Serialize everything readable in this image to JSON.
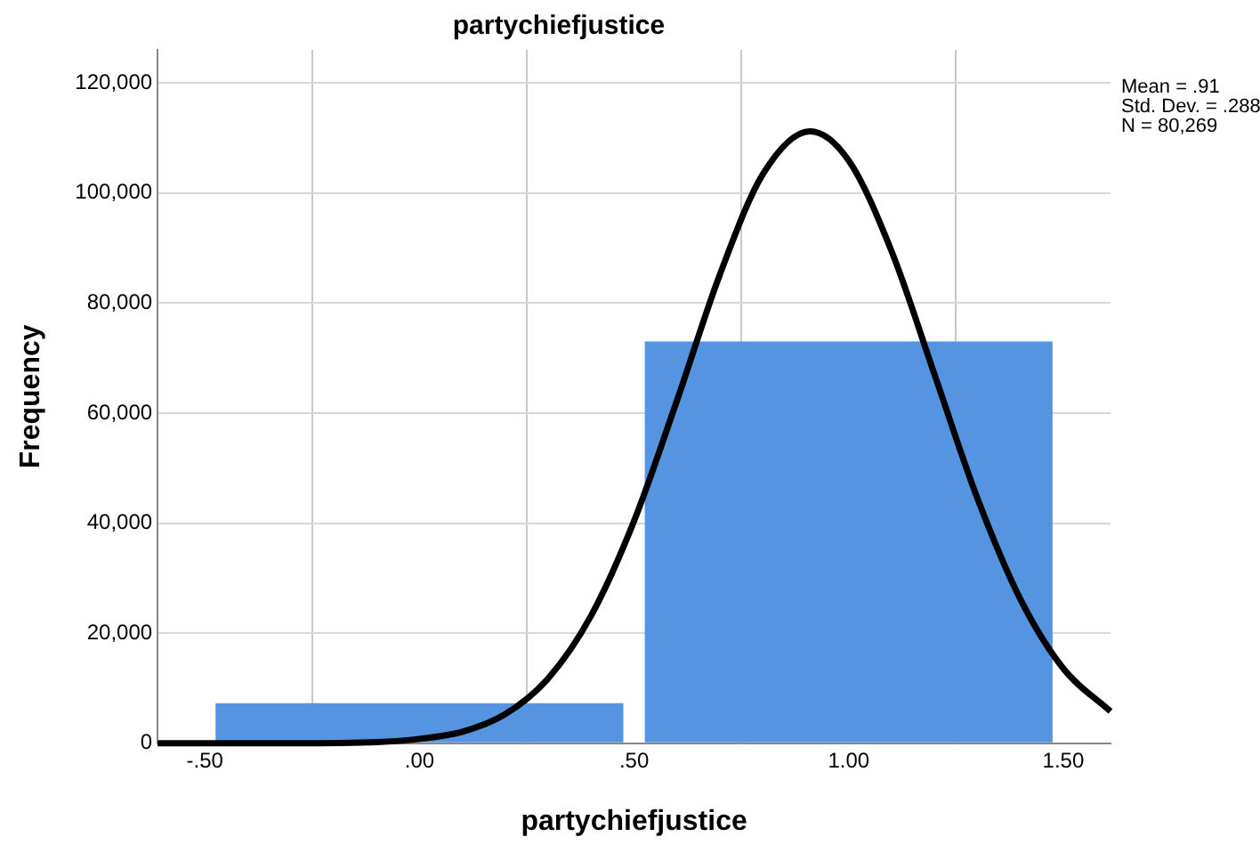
{
  "chart_data": {
    "type": "histogram",
    "title": "partychiefjustice",
    "xlabel": "partychiefjustice",
    "ylabel": "Frequency",
    "bins": [
      -0.5,
      0.5,
      1.5
    ],
    "values": [
      7300,
      73000
    ],
    "color": "#5594e1",
    "series": [
      {
        "type": "line",
        "color": "#000000",
        "marker": "none",
        "line_style": "solid",
        "x": [
          -0.61,
          -0.3,
          -0.1,
          0.0,
          0.1,
          0.2,
          0.3,
          0.4,
          0.5,
          0.6,
          0.7,
          0.8,
          0.91,
          1.0,
          1.1,
          1.2,
          1.3,
          1.4,
          1.5,
          1.61
        ],
        "values": [
          0,
          0,
          200,
          800,
          2100,
          5300,
          11800,
          23200,
          40400,
          62300,
          85200,
          103400,
          111200,
          105900,
          89400,
          67000,
          44500,
          26200,
          13600,
          5800
        ]
      }
    ],
    "xlim": [
      -0.61,
      1.61
    ],
    "xticks": [
      {
        "value": -0.5,
        "label": "-.50"
      },
      {
        "value": 0,
        "label": ".00"
      },
      {
        "value": 0.5,
        "label": ".50"
      },
      {
        "value": 1,
        "label": "1.00"
      },
      {
        "value": 1.5,
        "label": "1.50"
      }
    ],
    "ylim": [
      0,
      126000
    ],
    "yticks": [
      {
        "value": 0,
        "label": "0"
      },
      {
        "value": 20000,
        "label": "20,000"
      },
      {
        "value": 40000,
        "label": "40,000"
      },
      {
        "value": 60000,
        "label": "60,000"
      },
      {
        "value": 80000,
        "label": "80,000"
      },
      {
        "value": 100000,
        "label": "100,000"
      },
      {
        "value": 120000,
        "label": "120,000"
      }
    ],
    "grid": true,
    "annotations": [
      "Mean = .91",
      "Std. Dev. = .288",
      "N = 80,269"
    ]
  }
}
